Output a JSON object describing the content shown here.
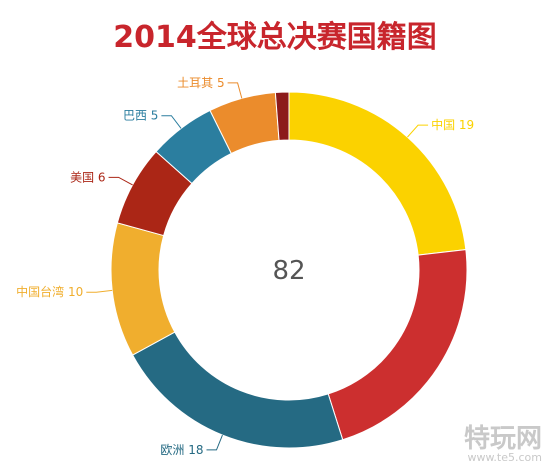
{
  "chart_data": {
    "type": "pie",
    "title": "2014全球总决赛国籍图",
    "center_label": "82",
    "slices": [
      {
        "label": "中国",
        "value": 19,
        "color": "#fbd200"
      },
      {
        "label": "",
        "value": 18,
        "color": "#cc2f2f"
      },
      {
        "label": "欧洲",
        "value": 18,
        "color": "#256a83"
      },
      {
        "label": "中国台湾",
        "value": 10,
        "color": "#f0ae2e"
      },
      {
        "label": "美国",
        "value": 6,
        "color": "#ab2616"
      },
      {
        "label": "巴西",
        "value": 5,
        "color": "#2b7e9f"
      },
      {
        "label": "土耳其",
        "value": 5,
        "color": "#eb8c2c"
      },
      {
        "label": "",
        "value": 1,
        "color": "#8c1a1a"
      }
    ]
  },
  "watermark": {
    "text": "特玩网",
    "url": "www.te5.com"
  }
}
